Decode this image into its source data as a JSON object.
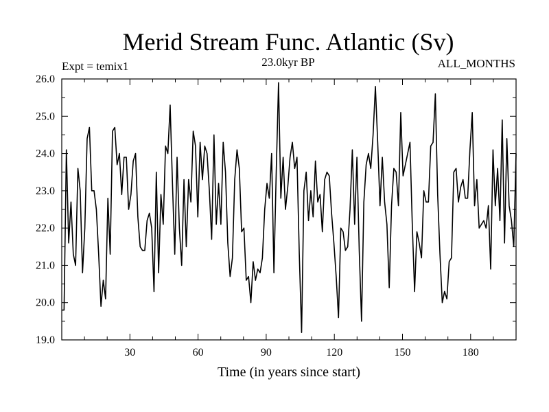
{
  "chart_data": {
    "type": "line",
    "title": "Merid Stream Func. Atlantic (Sv)",
    "subtitle_left": "Expt = temix1",
    "subtitle_center": "23.0kyr BP",
    "subtitle_right": "ALL_MONTHS",
    "xlabel": "Time (in years since start)",
    "ylabel": "",
    "xlim": [
      0,
      200
    ],
    "ylim": [
      19,
      26
    ],
    "x_ticks": [
      30,
      60,
      90,
      120,
      150,
      180
    ],
    "y_ticks": [
      19.0,
      20.0,
      21.0,
      22.0,
      23.0,
      24.0,
      25.0,
      26.0
    ],
    "x_tick_labels": [
      "30",
      "60",
      "90",
      "120",
      "150",
      "180"
    ],
    "y_tick_labels": [
      "19.0",
      "20.0",
      "21.0",
      "22.0",
      "23.0",
      "24.0",
      "25.0",
      "26.0"
    ],
    "grid": false,
    "line_color": "#000000",
    "series": [
      {
        "values": [
          19.8,
          19.8,
          24.1,
          21.6,
          22.7,
          21.3,
          21.0,
          23.6,
          23.0,
          20.8,
          22.0,
          24.4,
          24.7,
          23.0,
          23.0,
          22.5,
          21.3,
          19.9,
          20.6,
          20.1,
          22.8,
          21.3,
          24.6,
          24.7,
          23.7,
          24.0,
          22.9,
          23.9,
          23.9,
          22.5,
          22.9,
          23.8,
          24.0,
          22.3,
          21.5,
          21.4,
          21.4,
          22.2,
          22.4,
          22.0,
          20.3,
          23.5,
          20.8,
          22.9,
          22.1,
          24.2,
          24.0,
          25.3,
          23.2,
          21.3,
          23.9,
          22.0,
          21.0,
          23.3,
          21.5,
          23.3,
          22.7,
          24.6,
          24.2,
          22.3,
          24.3,
          23.3,
          24.2,
          24.0,
          23.0,
          21.7,
          24.5,
          22.1,
          23.2,
          22.1,
          24.3,
          23.5,
          21.6,
          20.7,
          21.2,
          23.3,
          24.1,
          23.6,
          21.9,
          22.0,
          20.6,
          20.7,
          20.0,
          21.1,
          20.6,
          20.9,
          20.8,
          21.2,
          22.5,
          23.2,
          22.8,
          24.0,
          20.8,
          23.5,
          25.9,
          22.8,
          23.9,
          22.5,
          23.1,
          23.9,
          24.3,
          23.6,
          23.9,
          21.3,
          19.2,
          23.0,
          23.5,
          22.2,
          23.0,
          22.3,
          23.8,
          22.7,
          22.9,
          21.9,
          23.3,
          23.5,
          23.4,
          22.4,
          21.6,
          20.7,
          19.6,
          22.0,
          21.9,
          21.4,
          21.5,
          22.5,
          24.1,
          22.1,
          23.9,
          21.4,
          19.5,
          22.7,
          23.7,
          24.0,
          23.6,
          24.5,
          25.8,
          24.3,
          22.6,
          23.9,
          22.7,
          22.1,
          20.4,
          22.6,
          23.6,
          23.5,
          22.6,
          25.1,
          23.4,
          23.7,
          24.0,
          24.3,
          22.1,
          20.3,
          21.9,
          21.6,
          21.2,
          23.0,
          22.7,
          22.7,
          24.2,
          24.3,
          25.6,
          22.9,
          21.3,
          20.0,
          20.3,
          20.1,
          21.1,
          21.2,
          23.5,
          23.6,
          22.7,
          23.1,
          23.3,
          22.8,
          22.8,
          24.1,
          25.1,
          22.6,
          23.3,
          22.0,
          22.1,
          22.2,
          22.0,
          22.6,
          20.9,
          24.1,
          22.6,
          23.6,
          22.2,
          24.9,
          21.6,
          24.4,
          22.6,
          22.2,
          21.5,
          24.0
        ]
      }
    ]
  }
}
